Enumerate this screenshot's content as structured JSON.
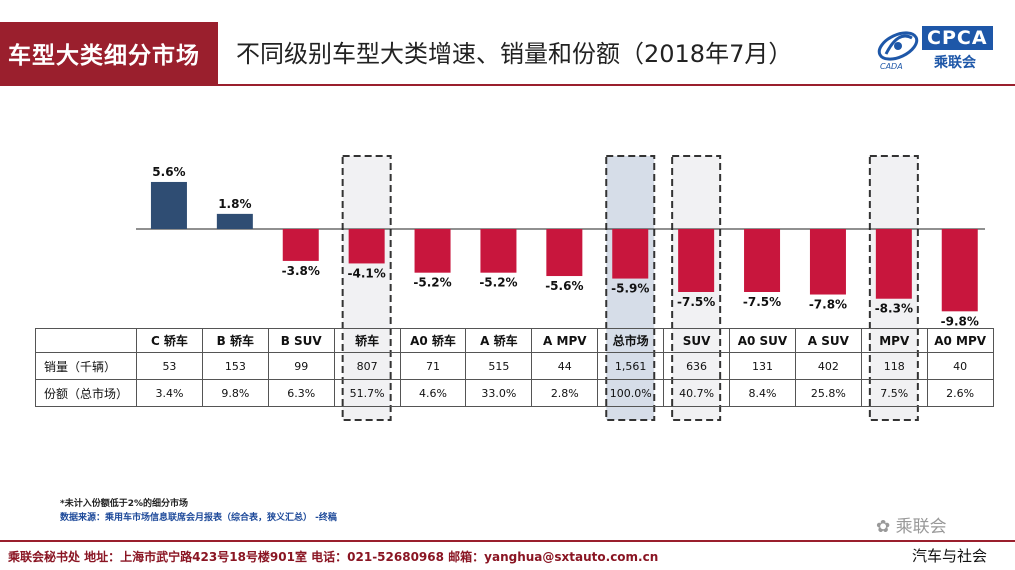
{
  "header": {
    "section_tab": "车型大类细分市场",
    "title": "不同级别车型大类增速、销量和份额（2018年7月）",
    "logo": {
      "brand": "CPCA",
      "brand_cn": "乘联会",
      "brand_sub": "CADA"
    }
  },
  "colors": {
    "positive": "#2f4d73",
    "negative": "#c8163d",
    "accent": "#9a1f2d",
    "highlight": "#d6dde8"
  },
  "chart_data": {
    "type": "bar",
    "categories": [
      "C 轿车",
      "B 轿车",
      "B SUV",
      "轿车",
      "A0 轿车",
      "A 轿车",
      "A MPV",
      "总市场",
      "SUV",
      "A0 SUV",
      "A SUV",
      "MPV",
      "A0 MPV"
    ],
    "values": [
      5.6,
      1.8,
      -3.8,
      -4.1,
      -5.2,
      -5.2,
      -5.6,
      -5.9,
      -7.5,
      -7.5,
      -7.8,
      -8.3,
      -9.8
    ],
    "value_labels": [
      "5.6%",
      "1.8%",
      "-3.8%",
      "-4.1%",
      "-5.2%",
      "-5.2%",
      "-5.6%",
      "-5.9%",
      "-7.5%",
      "-7.5%",
      "-7.8%",
      "-8.3%",
      "-9.8%"
    ],
    "highlighted": [
      "轿车",
      "总市场",
      "SUV",
      "MPV"
    ],
    "filled_highlight": [
      "总市场"
    ],
    "ylim": [
      -10,
      6
    ]
  },
  "table": {
    "rows": [
      {
        "label": "销量（千辆）",
        "values": [
          "53",
          "153",
          "99",
          "807",
          "71",
          "515",
          "44",
          "1,561",
          "636",
          "131",
          "402",
          "118",
          "40"
        ]
      },
      {
        "label": "份额（总市场）",
        "values": [
          "3.4%",
          "9.8%",
          "6.3%",
          "51.7%",
          "4.6%",
          "33.0%",
          "2.8%",
          "100.0%",
          "40.7%",
          "8.4%",
          "25.8%",
          "7.5%",
          "2.6%"
        ]
      }
    ]
  },
  "notes": {
    "footnote": "*未计入份额低于2%的细分市场",
    "source": "数据来源：乘用车市场信息联席会月报表（综合表，狭义汇总） -终稿"
  },
  "footer": {
    "text": "乘联会秘书处   地址：上海市武宁路423号18号楼901室  电话：021-52680968   邮箱：yanghua@sxtauto.com.cn"
  },
  "watermarks": {
    "top": "乘联会",
    "bottom": "汽车与社会"
  }
}
